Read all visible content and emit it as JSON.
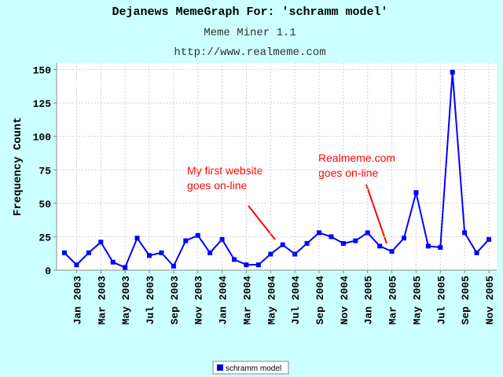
{
  "chart_data": {
    "type": "line",
    "title": "Dejanews MemeGraph For: 'schramm model'",
    "subtitle": "Meme Miner 1.1",
    "url": "http://www.realmeme.com",
    "y_label": "Frequency Count",
    "categories": [
      null,
      "Jan 2003",
      null,
      "Mar 2003",
      null,
      "May 2003",
      null,
      "Jul 2003",
      null,
      "Sep 2003",
      null,
      "Nov 2003",
      null,
      "Jan 2004",
      null,
      "Mar 2004",
      null,
      "May 2004",
      null,
      "Jul 2004",
      null,
      "Sep 2004",
      null,
      "Nov 2004",
      null,
      "Jan 2005",
      null,
      "Mar 2005",
      null,
      "May 2005",
      null,
      "Jul 2005",
      null,
      "Sep 2005",
      null,
      "Nov 2005"
    ],
    "series": [
      {
        "name": "schramm model",
        "color": "#0000ff",
        "values": [
          13,
          4,
          13,
          21,
          6,
          2,
          24,
          11,
          13,
          3,
          22,
          26,
          13,
          23,
          8,
          4,
          4,
          12,
          19,
          12,
          20,
          28,
          25,
          20,
          22,
          28,
          18,
          14,
          24,
          58,
          18,
          17,
          148,
          28,
          13,
          23
        ]
      }
    ],
    "ylim": [
      0,
      155
    ],
    "yticks": [
      0,
      25,
      50,
      75,
      100,
      125,
      150
    ],
    "grid": true,
    "legend": "bottom",
    "annotations": [
      {
        "lines": [
          "My first website",
          "goes on-line"
        ],
        "color": "#ff0000"
      },
      {
        "lines": [
          "Realmeme.com",
          "goes on-line"
        ],
        "color": "#ff0000"
      }
    ]
  }
}
